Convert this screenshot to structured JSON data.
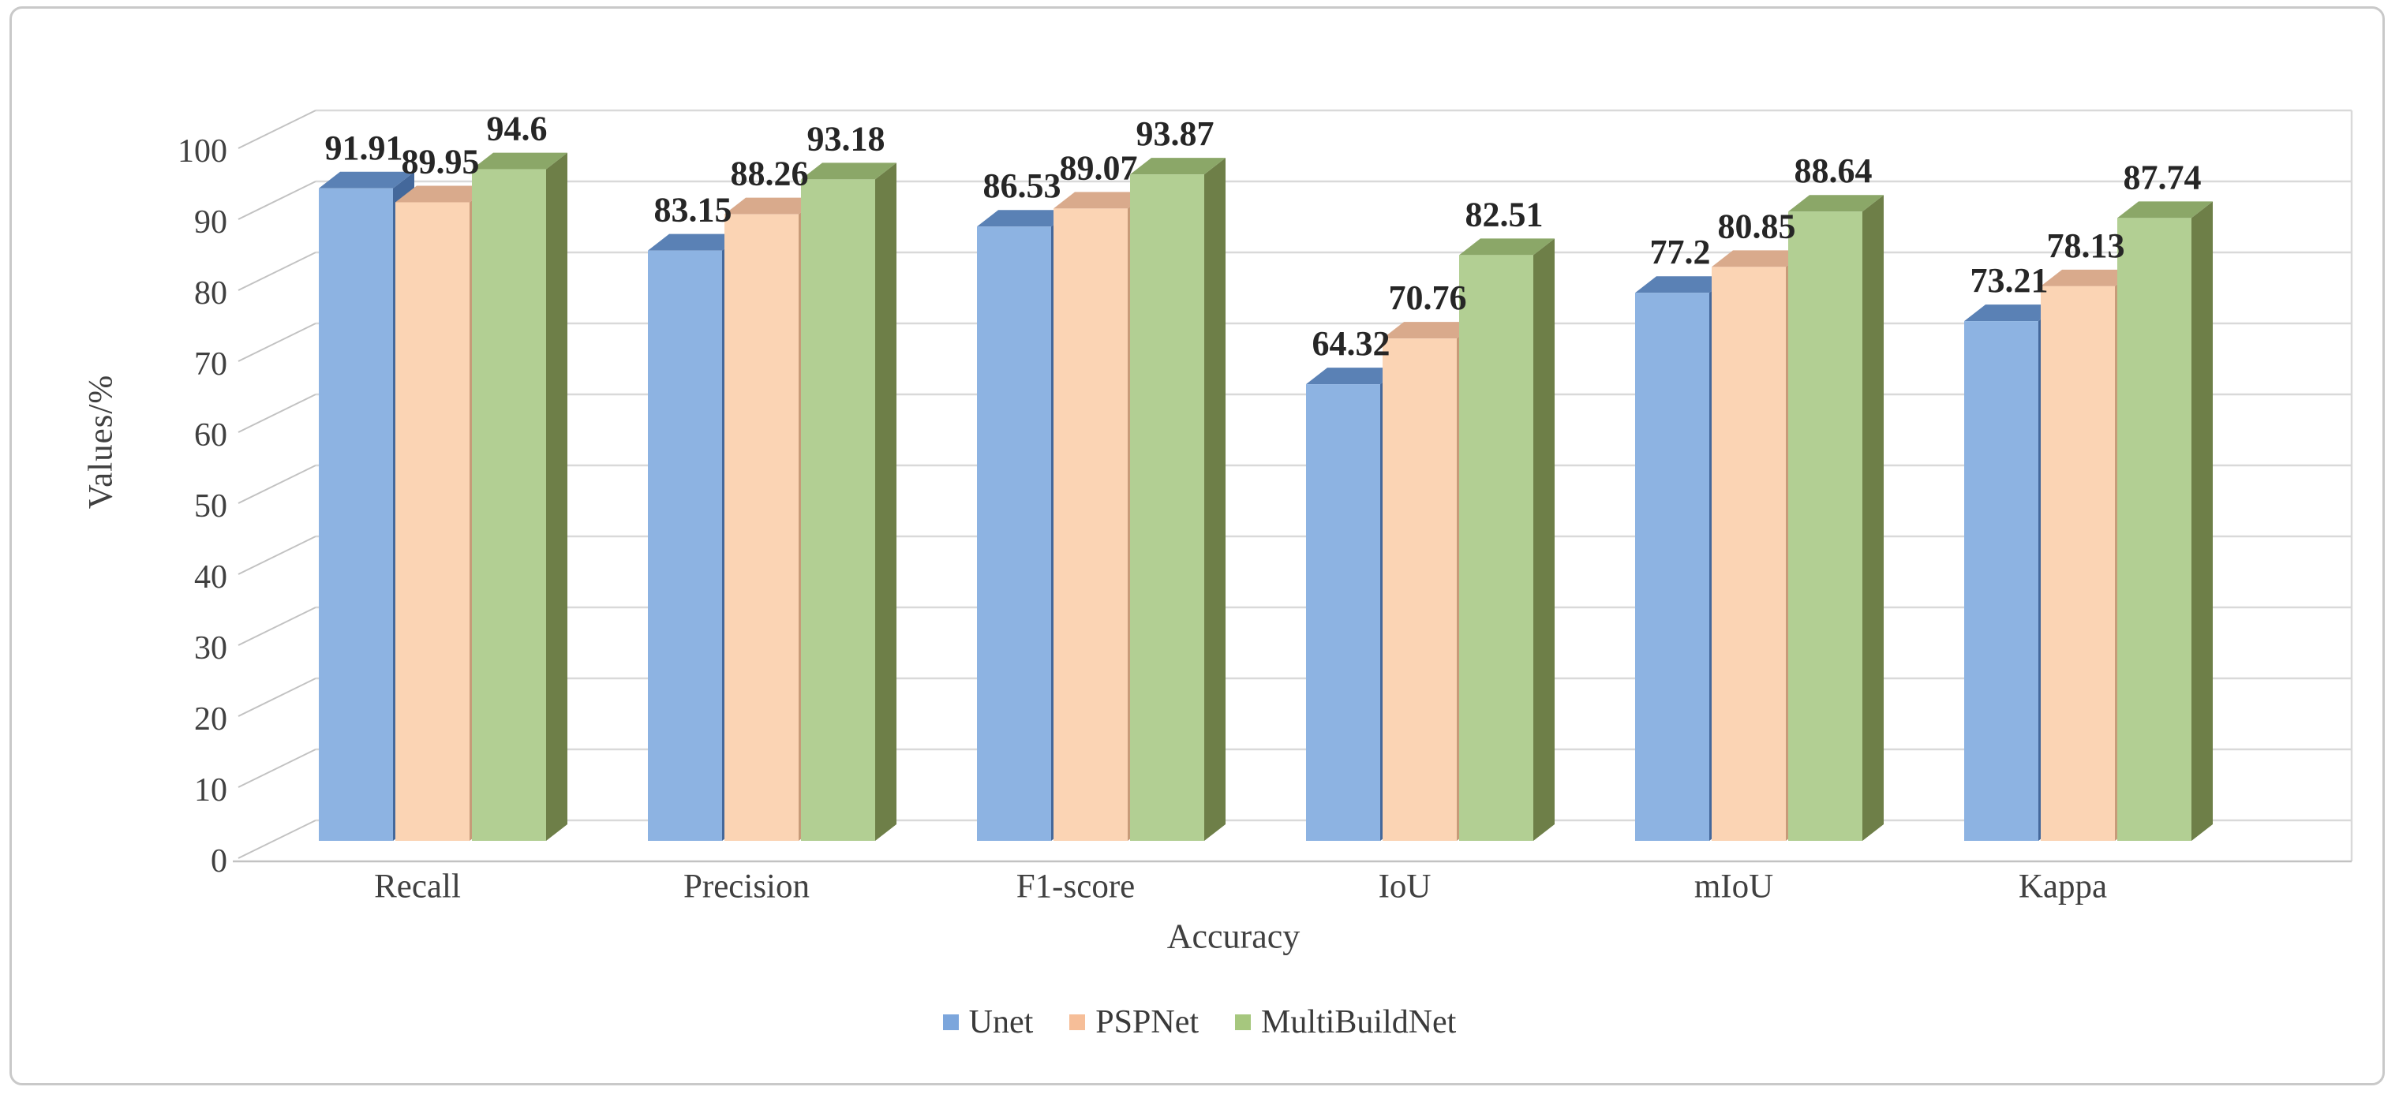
{
  "chart_data": {
    "type": "bar",
    "variant": "3d-clustered-column",
    "categories": [
      "Recall",
      "Precision",
      "F1-score",
      "IoU",
      "mIoU",
      "Kappa"
    ],
    "series": [
      {
        "name": "Unet",
        "values": [
          91.91,
          83.15,
          86.53,
          64.32,
          77.2,
          73.21
        ],
        "color_front": "#8DB3E2",
        "color_top": "#5A81B5",
        "color_side": "#44689B",
        "legend_color": "#7CA6DC"
      },
      {
        "name": "PSPNet",
        "values": [
          89.95,
          88.26,
          89.07,
          70.76,
          80.85,
          78.13
        ],
        "color_front": "#FBD4B4",
        "color_top": "#D9AA8C",
        "color_side": "#C79B79",
        "legend_color": "#F6BE98"
      },
      {
        "name": "MultiBuildNet",
        "values": [
          94.6,
          93.18,
          93.87,
          82.51,
          88.64,
          87.74
        ],
        "color_front": "#B2CF93",
        "color_top": "#8BA768",
        "color_side": "#6E7F48",
        "legend_color": "#A6C77E"
      }
    ],
    "xlabel": "Accuracy",
    "ylabel": "Values/%",
    "ylim": [
      0,
      100
    ],
    "yticks": [
      0,
      10,
      20,
      30,
      40,
      50,
      60,
      70,
      80,
      90,
      100
    ],
    "grid": "horizontal",
    "legend_position": "bottom",
    "data_labels": true
  },
  "colors": {
    "gridline": "#d9d9d9",
    "leader_line": "#c2c2c2",
    "floor_line": "#c2c2c2",
    "wall_line": "#d9d9d9",
    "tick_text": "#404040",
    "data_label_text": "#262626",
    "frame_border": "#c9c9c9",
    "background": "#ffffff"
  }
}
